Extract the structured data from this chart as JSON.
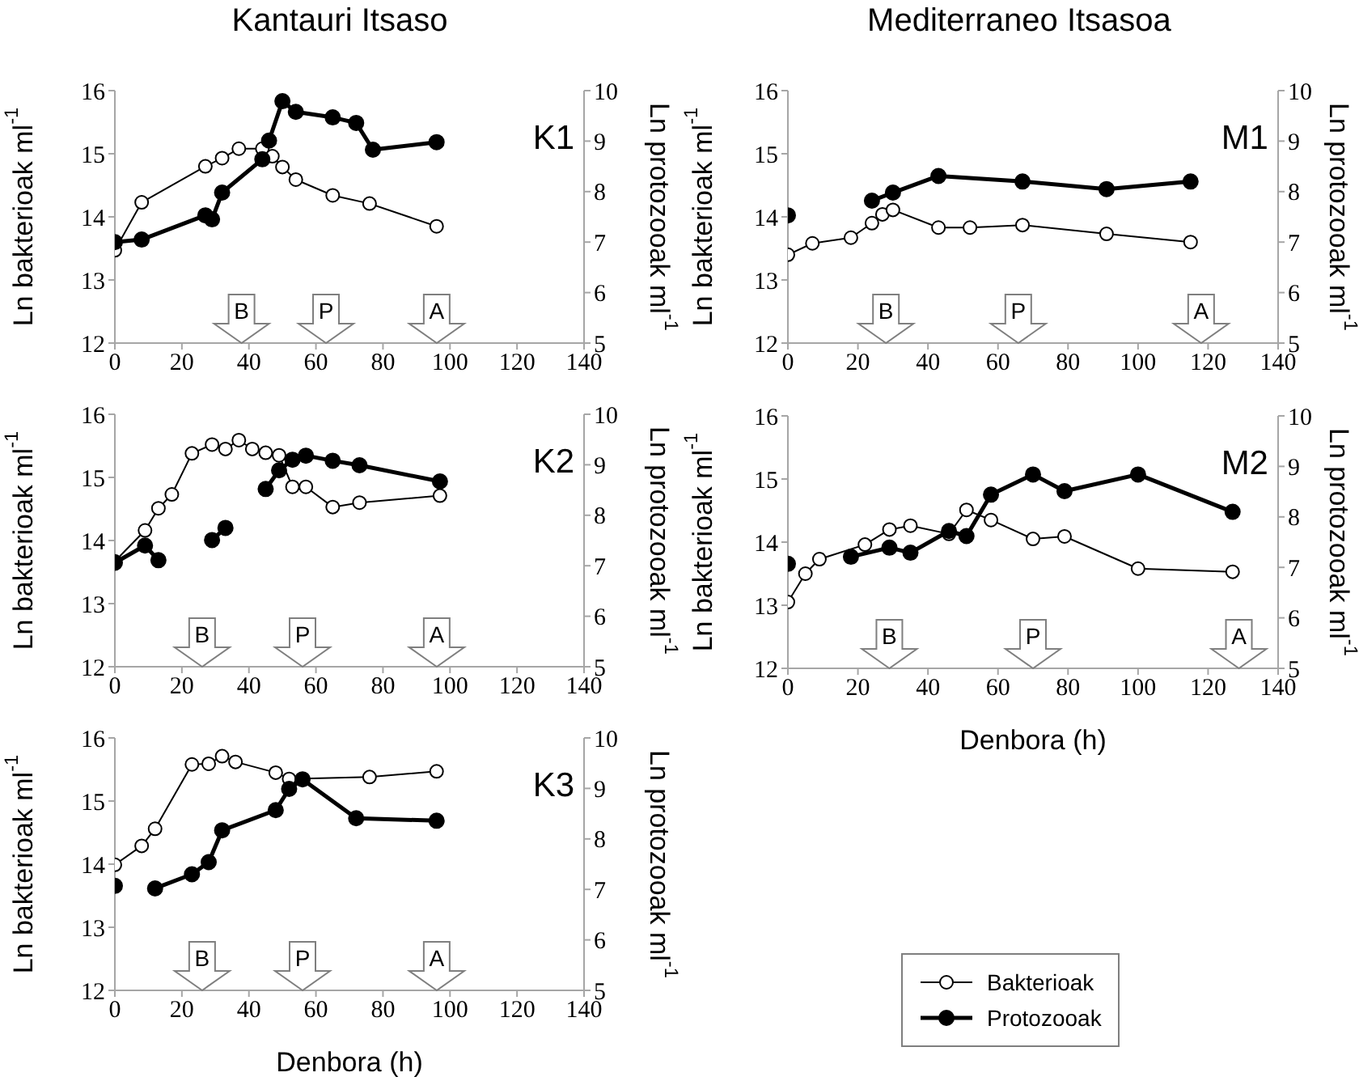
{
  "chart_data": [
    {
      "type": "line",
      "title": "Kantauri Itsaso",
      "ylabel": "Ln bakterioak ml$^{-1}$",
      "y2label": "Ln protozooak ml$^{-1}$",
      "xlim": [
        0,
        140
      ],
      "xticks": [
        0,
        20,
        40,
        60,
        80,
        100,
        120,
        140
      ],
      "ylim": [
        12,
        16
      ],
      "yticks": [
        12,
        13,
        14,
        15,
        16
      ],
      "y2lim": [
        5,
        10
      ],
      "y2ticks": [
        5,
        6,
        7,
        8,
        9,
        10
      ],
      "marker": "circle",
      "grid": false,
      "legend": false,
      "series": [
        {
          "color": "#000000",
          "x": [
            0,
            8,
            27,
            32,
            37,
            44,
            47,
            50,
            54,
            65,
            76,
            96
          ],
          "values": [
            13.47,
            14.23,
            14.8,
            14.93,
            15.08,
            15.08,
            14.96,
            14.79,
            14.59,
            14.34,
            14.21,
            13.85
          ]
        },
        {
          "color": "#000000",
          "axis": "y2",
          "x": [
            0,
            8,
            27,
            29,
            32,
            44,
            46,
            50,
            54,
            65,
            72,
            77,
            96
          ],
          "values": [
            7.0,
            7.05,
            7.53,
            7.45,
            7.98,
            8.64,
            9.01,
            9.79,
            9.58,
            9.47,
            9.36,
            8.83,
            8.98
          ]
        }
      ],
      "annotations": [
        "K1",
        "B",
        "P",
        "A"
      ]
    },
    {
      "type": "line",
      "title": "Mediterraneo Itsasoa",
      "ylabel": "Ln bakterioak ml$^{-1}$",
      "y2label": "Ln protozooak ml$^{-1}$",
      "xlim": [
        0,
        140
      ],
      "xticks": [
        0,
        20,
        40,
        60,
        80,
        100,
        120,
        140
      ],
      "ylim": [
        12,
        16
      ],
      "yticks": [
        12,
        13,
        14,
        15,
        16
      ],
      "y2lim": [
        5,
        10
      ],
      "y2ticks": [
        5,
        6,
        7,
        8,
        9,
        10
      ],
      "marker": "circle",
      "grid": false,
      "legend": false,
      "series": [
        {
          "color": "#000000",
          "x": [
            0,
            7,
            18,
            24,
            27,
            30,
            43,
            52,
            67,
            91,
            115
          ],
          "values": [
            13.4,
            13.58,
            13.67,
            13.9,
            14.04,
            14.11,
            13.83,
            13.83,
            13.87,
            13.73,
            13.6
          ]
        },
        {
          "color": "#000000",
          "axis": "y2",
          "x": [
            0,
            20,
            24,
            30,
            43,
            67,
            91,
            115
          ],
          "values": [
            7.53,
            null,
            7.82,
            7.98,
            8.31,
            8.2,
            8.05,
            8.2
          ]
        }
      ],
      "annotations": [
        "M1",
        "B",
        "P",
        "A"
      ]
    },
    {
      "type": "line",
      "ylabel": "Ln bakterioak ml$^{-1}$",
      "y2label": "Ln protozooak ml$^{-1}$",
      "xlim": [
        0,
        140
      ],
      "xticks": [
        0,
        20,
        40,
        60,
        80,
        100,
        120,
        140
      ],
      "ylim": [
        12,
        16
      ],
      "yticks": [
        12,
        13,
        14,
        15,
        16
      ],
      "y2lim": [
        5,
        10
      ],
      "y2ticks": [
        5,
        6,
        7,
        8,
        9,
        10
      ],
      "marker": "circle",
      "grid": false,
      "legend": false,
      "series": [
        {
          "color": "#000000",
          "x": [
            0,
            9,
            13,
            17,
            23,
            29,
            33,
            37,
            41,
            45,
            49,
            53,
            57,
            65,
            73,
            97
          ],
          "values": [
            13.67,
            14.16,
            14.51,
            14.73,
            15.38,
            15.52,
            15.45,
            15.59,
            15.45,
            15.39,
            15.35,
            14.85,
            14.85,
            14.53,
            14.6,
            14.71
          ]
        },
        {
          "color": "#000000",
          "axis": "y2",
          "x": [
            0,
            9,
            13,
            22,
            29,
            33,
            40,
            45,
            49,
            53,
            57,
            65,
            73,
            97
          ],
          "values": [
            7.06,
            7.4,
            7.11,
            null,
            7.51,
            7.75,
            null,
            8.52,
            8.89,
            9.1,
            9.18,
            9.08,
            8.99,
            8.67
          ]
        }
      ],
      "annotations": [
        "K2",
        "B",
        "P",
        "A"
      ]
    },
    {
      "type": "line",
      "xlabel": "Denbora (h)",
      "ylabel": "Ln bakterioak ml$^{-1}$",
      "y2label": "Ln protozooak ml$^{-1}$",
      "xlim": [
        0,
        140
      ],
      "xticks": [
        0,
        20,
        40,
        60,
        80,
        100,
        120,
        140
      ],
      "ylim": [
        12,
        16
      ],
      "yticks": [
        12,
        13,
        14,
        15,
        16
      ],
      "y2lim": [
        5,
        10
      ],
      "y2ticks": [
        5,
        6,
        7,
        8,
        9,
        10
      ],
      "marker": "circle",
      "grid": false,
      "legend": "bottom",
      "series": [
        {
          "name": "Bakterioak",
          "color": "#000000",
          "x": [
            0,
            5,
            9,
            22,
            29,
            35,
            46,
            51,
            58,
            70,
            79,
            100,
            127
          ],
          "values": [
            13.05,
            13.5,
            13.73,
            13.96,
            14.2,
            14.26,
            14.13,
            14.51,
            14.35,
            14.05,
            14.09,
            13.58,
            13.53
          ]
        },
        {
          "name": "Protozooak",
          "color": "#000000",
          "axis": "y2",
          "x": [
            0,
            15,
            18,
            29,
            35,
            46,
            51,
            58,
            70,
            79,
            100,
            127
          ],
          "values": [
            7.07,
            null,
            7.21,
            7.39,
            7.29,
            7.72,
            7.62,
            8.44,
            8.84,
            8.51,
            8.84,
            8.1
          ]
        }
      ],
      "annotations": [
        "M2",
        "B",
        "P",
        "A"
      ]
    },
    {
      "type": "line",
      "xlabel": "Denbora (h)",
      "ylabel": "Ln bakterioak ml$^{-1}$",
      "y2label": "Ln protozooak ml$^{-1}$",
      "xlim": [
        0,
        140
      ],
      "xticks": [
        0,
        20,
        40,
        60,
        80,
        100,
        120,
        140
      ],
      "ylim": [
        12,
        16
      ],
      "yticks": [
        12,
        13,
        14,
        15,
        16
      ],
      "y2lim": [
        5,
        10
      ],
      "y2ticks": [
        5,
        6,
        7,
        8,
        9,
        10
      ],
      "marker": "circle",
      "grid": false,
      "legend": false,
      "series": [
        {
          "color": "#000000",
          "x": [
            0,
            8,
            12,
            23,
            28,
            32,
            36,
            48,
            52,
            76,
            96
          ],
          "values": [
            13.99,
            14.29,
            14.56,
            15.58,
            15.59,
            15.71,
            15.62,
            15.45,
            15.35,
            15.38,
            15.47
          ]
        },
        {
          "color": "#000000",
          "axis": "y2",
          "x": [
            0,
            6,
            12,
            23,
            28,
            32,
            48,
            52,
            56,
            72,
            96
          ],
          "values": [
            7.07,
            null,
            7.02,
            7.3,
            7.54,
            8.17,
            8.57,
            8.99,
            9.18,
            8.41,
            8.36
          ]
        }
      ],
      "annotations": [
        "K3",
        "B",
        "P",
        "A"
      ]
    }
  ]
}
